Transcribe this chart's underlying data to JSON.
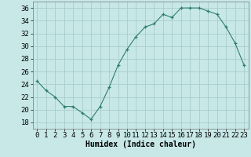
{
  "x": [
    0,
    1,
    2,
    3,
    4,
    5,
    6,
    7,
    8,
    9,
    10,
    11,
    12,
    13,
    14,
    15,
    16,
    17,
    18,
    19,
    20,
    21,
    22,
    23
  ],
  "y": [
    24.5,
    23,
    22,
    20.5,
    20.5,
    19.5,
    18.5,
    20.5,
    23.5,
    27,
    29.5,
    31.5,
    33,
    33.5,
    35,
    34.5,
    36,
    36,
    36,
    35.5,
    35,
    33,
    30.5,
    27
  ],
  "line_color": "#2e7d6e",
  "marker": "+",
  "marker_color": "#2e7d6e",
  "bg_color": "#c8e8e8",
  "grid_color": "#aacccc",
  "xlabel": "Humidex (Indice chaleur)",
  "xlim": [
    -0.5,
    23.5
  ],
  "ylim": [
    17,
    37
  ],
  "yticks": [
    18,
    20,
    22,
    24,
    26,
    28,
    30,
    32,
    34,
    36
  ],
  "xticks": [
    0,
    1,
    2,
    3,
    4,
    5,
    6,
    7,
    8,
    9,
    10,
    11,
    12,
    13,
    14,
    15,
    16,
    17,
    18,
    19,
    20,
    21,
    22,
    23
  ],
  "label_fontsize": 7,
  "tick_fontsize": 6.5
}
